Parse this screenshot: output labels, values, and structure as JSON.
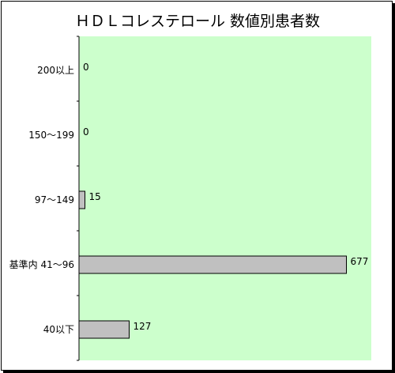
{
  "chart_data": {
    "type": "bar",
    "orientation": "horizontal",
    "title": "ＨＤＬコレステロール 数値別患者数",
    "categories": [
      "200以上",
      "150～199",
      "97～149",
      "基準内 41～96",
      "40以下"
    ],
    "values": [
      0,
      0,
      15,
      677,
      127
    ],
    "xlim": [
      0,
      740
    ],
    "xlabel": "",
    "ylabel": "",
    "grid": false,
    "legend": "none",
    "colors": {
      "plot_background": "#ccffcc",
      "bar_fill": "#c0c0c0",
      "bar_stroke": "#000000"
    }
  }
}
